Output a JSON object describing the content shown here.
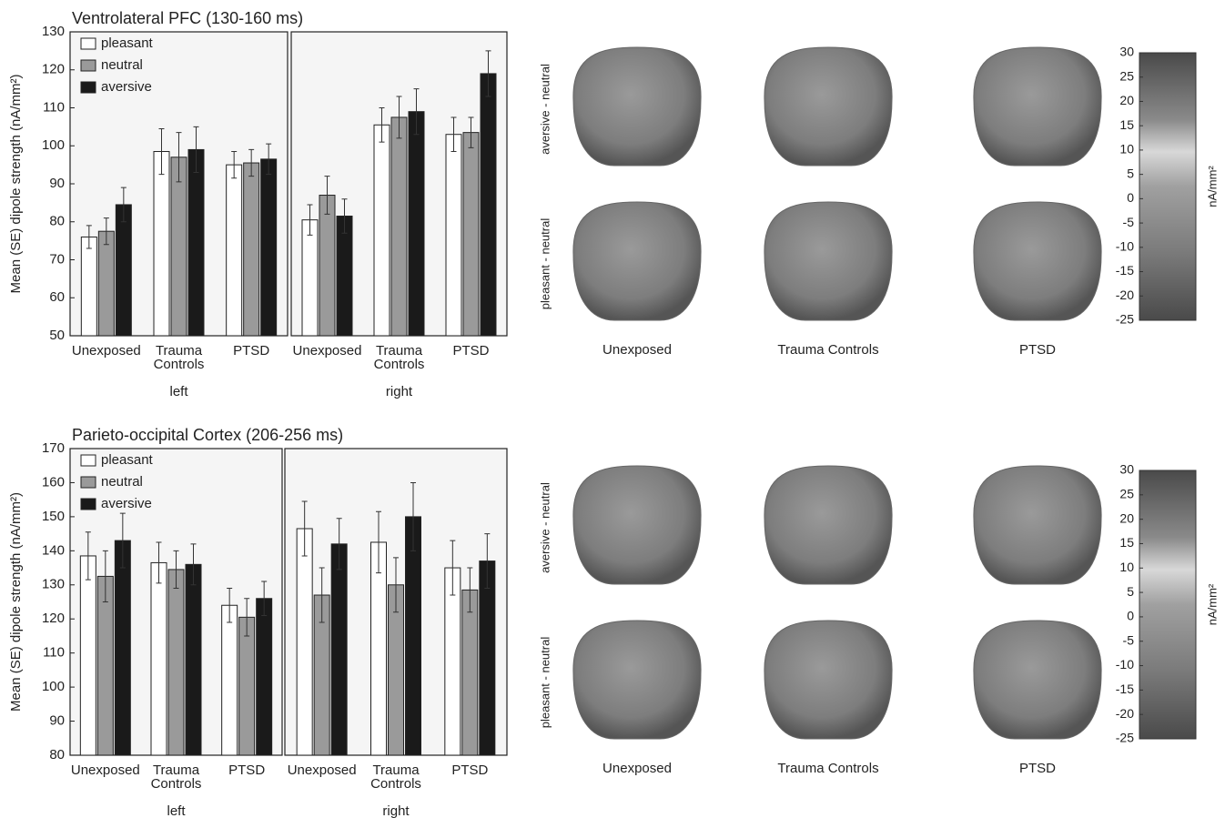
{
  "chart_data": [
    {
      "type": "bar",
      "title": "Ventrolateral PFC (130-160 ms)",
      "ylabel": "Mean (SE) dipole strength (nA/mm²)",
      "xlabel": "left",
      "categories": [
        "Unexposed",
        "Trauma Controls",
        "PTSD"
      ],
      "series": [
        {
          "name": "pleasant",
          "color": "#ffffff",
          "values": [
            76,
            98.5,
            95
          ],
          "errors": [
            3,
            6,
            3.5
          ]
        },
        {
          "name": "neutral",
          "color": "#9a9a9a",
          "values": [
            77.5,
            97,
            95.5
          ],
          "errors": [
            3.5,
            6.5,
            3.5
          ]
        },
        {
          "name": "aversive",
          "color": "#1a1a1a",
          "values": [
            84.5,
            99,
            96.5
          ],
          "errors": [
            4.5,
            6,
            4
          ]
        }
      ],
      "ylim": [
        50,
        130
      ],
      "yticks": [
        50,
        60,
        70,
        80,
        90,
        100,
        110,
        120,
        130
      ],
      "legend": "upper left"
    },
    {
      "type": "bar",
      "xlabel": "right",
      "categories": [
        "Unexposed",
        "Trauma Controls",
        "PTSD"
      ],
      "series": [
        {
          "color": "#ffffff",
          "values": [
            80.5,
            105.5,
            103
          ],
          "errors": [
            4,
            4.5,
            4.5
          ]
        },
        {
          "color": "#9a9a9a",
          "values": [
            87,
            107.5,
            103.5
          ],
          "errors": [
            5,
            5.5,
            4
          ]
        },
        {
          "color": "#1a1a1a",
          "values": [
            81.5,
            109,
            119
          ],
          "errors": [
            4.5,
            6,
            6
          ]
        }
      ],
      "ylim": [
        50,
        130
      ]
    },
    {
      "type": "bar",
      "title": "Parieto-occipital Cortex (206-256 ms)",
      "ylabel": "Mean (SE) dipole strength (nA/mm²)",
      "xlabel": "left",
      "categories": [
        "Unexposed",
        "Trauma Controls",
        "PTSD"
      ],
      "series": [
        {
          "name": "pleasant",
          "color": "#ffffff",
          "values": [
            138.5,
            136.5,
            124
          ],
          "errors": [
            7,
            6,
            5
          ]
        },
        {
          "name": "neutral",
          "color": "#9a9a9a",
          "values": [
            132.5,
            134.5,
            120.5
          ],
          "errors": [
            7.5,
            5.5,
            5.5
          ]
        },
        {
          "name": "aversive",
          "color": "#1a1a1a",
          "values": [
            143,
            136,
            126
          ],
          "errors": [
            8,
            6,
            5
          ]
        }
      ],
      "ylim": [
        80,
        170
      ],
      "yticks": [
        80,
        90,
        100,
        110,
        120,
        130,
        140,
        150,
        160,
        170
      ],
      "legend": "upper left"
    },
    {
      "type": "bar",
      "xlabel": "right",
      "categories": [
        "Unexposed",
        "Trauma Controls",
        "PTSD"
      ],
      "series": [
        {
          "color": "#ffffff",
          "values": [
            146.5,
            142.5,
            135
          ],
          "errors": [
            8,
            9,
            8
          ]
        },
        {
          "color": "#9a9a9a",
          "values": [
            127,
            130,
            128.5
          ],
          "errors": [
            8,
            8,
            6.5
          ]
        },
        {
          "color": "#1a1a1a",
          "values": [
            142,
            150,
            137
          ],
          "errors": [
            7.5,
            10,
            8
          ]
        }
      ],
      "ylim": [
        80,
        170
      ]
    }
  ],
  "brain_maps": [
    {
      "row_labels": [
        "aversive - neutral",
        "pleasant - neutral"
      ],
      "column_labels": [
        "Unexposed",
        "Trauma Controls",
        "PTSD"
      ],
      "colorbar": {
        "label": "nA/mm²",
        "lim": [
          -25,
          30
        ],
        "ticks": [
          30,
          25,
          20,
          15,
          10,
          5,
          0,
          -5,
          -10,
          -15,
          -20,
          -25
        ]
      }
    },
    {
      "row_labels": [
        "aversive - neutral",
        "pleasant - neutral"
      ],
      "column_labels": [
        "Unexposed",
        "Trauma Controls",
        "PTSD"
      ],
      "colorbar": {
        "label": "nA/mm²",
        "lim": [
          -25,
          30
        ],
        "ticks": [
          30,
          25,
          20,
          15,
          10,
          5,
          0,
          -5,
          -10,
          -15,
          -20,
          -25
        ]
      }
    }
  ]
}
